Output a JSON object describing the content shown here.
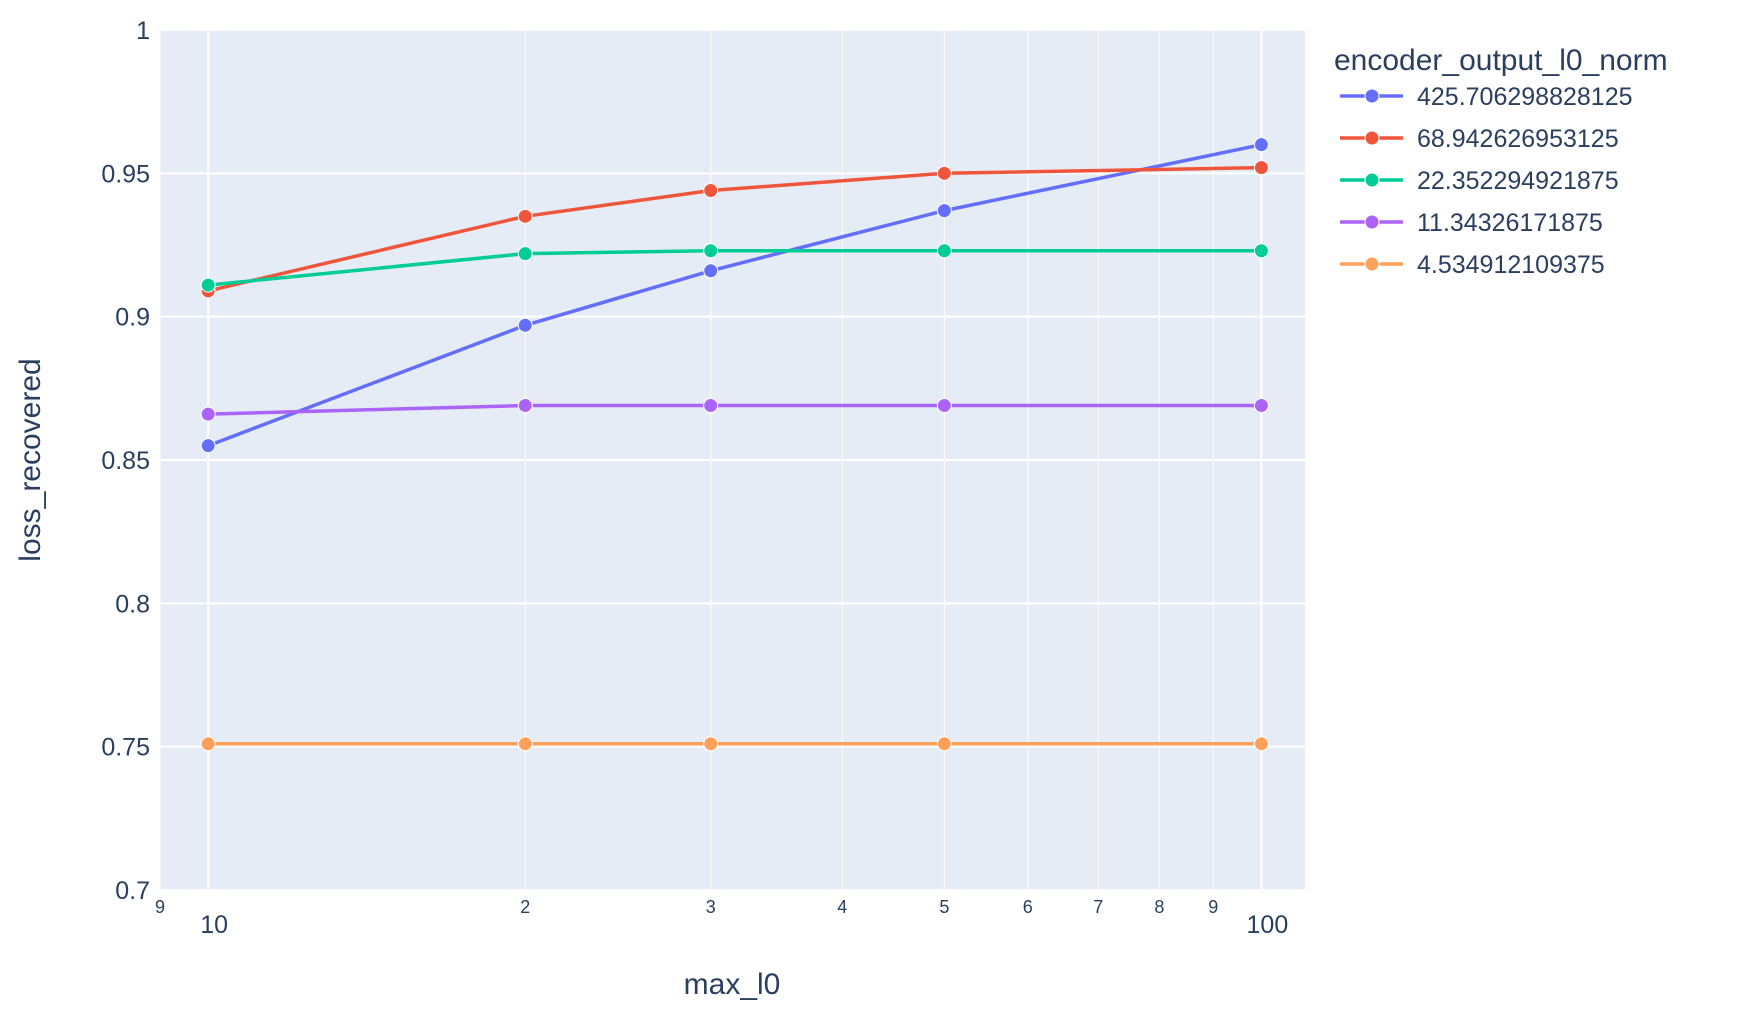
{
  "chart_data": {
    "type": "line",
    "xlabel": "max_l0",
    "ylabel": "loss_recovered",
    "x_scale": "log",
    "xlim": [
      9,
      110
    ],
    "ylim": [
      0.7,
      1
    ],
    "grid": true,
    "plot_background": "#E5ECF6",
    "y_ticks": [
      {
        "value": 0.7,
        "label": "0.7"
      },
      {
        "value": 0.75,
        "label": "0.75"
      },
      {
        "value": 0.8,
        "label": "0.8"
      },
      {
        "value": 0.85,
        "label": "0.85"
      },
      {
        "value": 0.9,
        "label": "0.9"
      },
      {
        "value": 0.95,
        "label": "0.95"
      },
      {
        "value": 1,
        "label": "1"
      }
    ],
    "x_major_ticks": [
      {
        "value": 10,
        "label": "10"
      },
      {
        "value": 100,
        "label": "100"
      }
    ],
    "x_minor_ticks": [
      {
        "value": 9,
        "label": "9"
      },
      {
        "value": 20,
        "label": "2"
      },
      {
        "value": 30,
        "label": "3"
      },
      {
        "value": 40,
        "label": "4"
      },
      {
        "value": 50,
        "label": "5"
      },
      {
        "value": 60,
        "label": "6"
      },
      {
        "value": 70,
        "label": "7"
      },
      {
        "value": 80,
        "label": "8"
      },
      {
        "value": 90,
        "label": "9"
      }
    ],
    "x": [
      10,
      20,
      30,
      50,
      100
    ],
    "legend": {
      "title": "encoder_output_l0_norm",
      "position": "right"
    },
    "series": [
      {
        "name": "425.706298828125",
        "color": "#636EFA",
        "values": [
          0.855,
          0.897,
          0.916,
          0.937,
          0.96
        ]
      },
      {
        "name": "68.942626953125",
        "color": "#EF553B",
        "values": [
          0.909,
          0.935,
          0.944,
          0.95,
          0.952
        ]
      },
      {
        "name": "22.352294921875",
        "color": "#00CC96",
        "values": [
          0.911,
          0.922,
          0.923,
          0.923,
          0.923
        ]
      },
      {
        "name": "11.34326171875",
        "color": "#AB63FA",
        "values": [
          0.866,
          0.869,
          0.869,
          0.869,
          0.869
        ]
      },
      {
        "name": "4.534912109375",
        "color": "#FFA15A",
        "values": [
          0.751,
          0.751,
          0.751,
          0.751,
          0.751
        ]
      }
    ]
  }
}
